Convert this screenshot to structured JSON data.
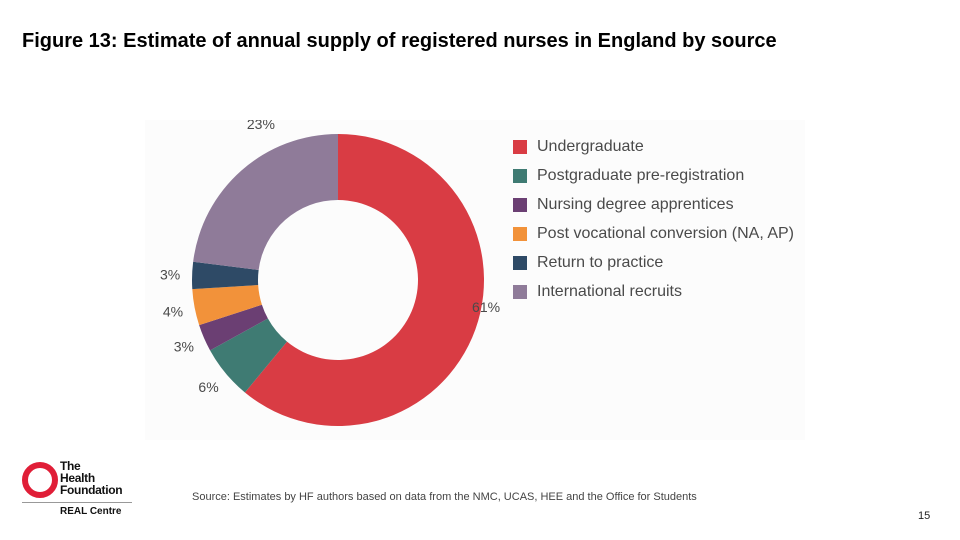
{
  "slide": {
    "title": "Figure 13: Estimate of annual supply of registered nurses in England by source",
    "source": "Source: Estimates by HF authors based on data from the NMC, UCAS, HEE and the Office for Students",
    "page_number": "15"
  },
  "logo": {
    "line1": "The",
    "line2": "Health",
    "line3": "Foundation",
    "sub": "REAL Centre",
    "color": "#e01e37"
  },
  "chart_data": {
    "type": "pie",
    "variant": "donut",
    "title": "",
    "legend_position": "right",
    "categories": [
      "Undergraduate",
      "Postgraduate pre-registration",
      "Nursing degree apprentices",
      "Post vocational conversion (NA, AP)",
      "Return to practice",
      "International recruits"
    ],
    "values": [
      61,
      6,
      3,
      4,
      3,
      23
    ],
    "data_labels": [
      "61%",
      "6%",
      "3%",
      "4%",
      "3%",
      "23%"
    ],
    "colors": [
      "#d93c44",
      "#3f7b73",
      "#6b3f73",
      "#f2923a",
      "#2e4a66",
      "#8f7b99"
    ]
  }
}
